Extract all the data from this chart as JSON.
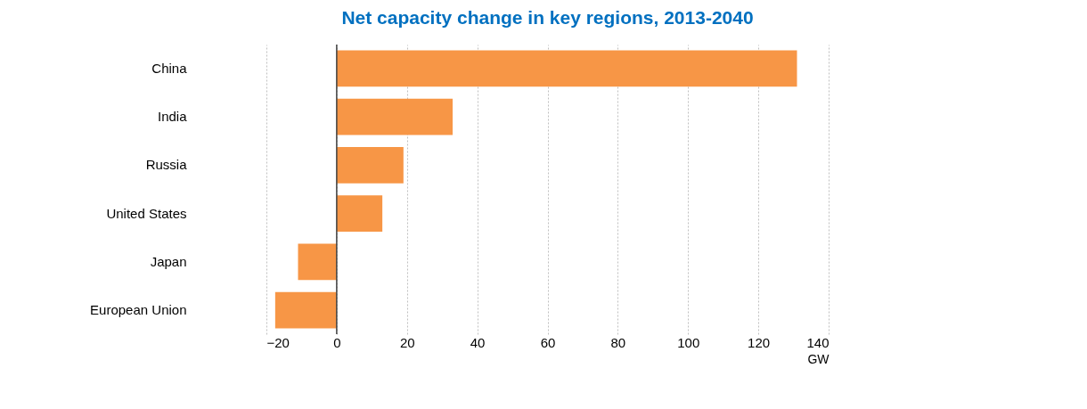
{
  "chart_data": {
    "type": "bar",
    "orientation": "horizontal",
    "title": "Net capacity change in key regions, 2013-2040",
    "categories": [
      "China",
      "India",
      "Russia",
      "United States",
      "Japan",
      "European Union"
    ],
    "values": [
      131,
      33,
      19,
      13,
      -11,
      -17.5
    ],
    "color": "#f79646",
    "xlabel": "GW",
    "xlim": [
      -20,
      140
    ],
    "xticks": [
      -20,
      0,
      20,
      40,
      60,
      80,
      100,
      120,
      140
    ],
    "grid": "x",
    "ref_lines": [
      {
        "axis": "x",
        "value": 0,
        "color": "#404040"
      }
    ]
  }
}
